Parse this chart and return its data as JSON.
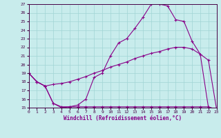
{
  "xlabel": "Windchill (Refroidissement éolien,°C)",
  "background_color": "#c8ecec",
  "line_color": "#880088",
  "xlim": [
    0,
    23
  ],
  "ylim": [
    15,
    27
  ],
  "yticks": [
    15,
    16,
    17,
    18,
    19,
    20,
    21,
    22,
    23,
    24,
    25,
    26,
    27
  ],
  "xticks": [
    0,
    1,
    2,
    3,
    4,
    5,
    6,
    7,
    8,
    9,
    10,
    11,
    12,
    13,
    14,
    15,
    16,
    17,
    18,
    19,
    20,
    21,
    22,
    23
  ],
  "curve1_x": [
    0,
    1,
    2,
    3,
    4,
    5,
    6,
    7,
    8,
    9,
    10,
    11,
    12,
    13,
    14,
    15,
    16,
    17,
    18,
    19,
    20,
    21,
    22,
    23
  ],
  "curve1_y": [
    19.0,
    18.0,
    17.5,
    15.5,
    15.0,
    15.1,
    15.3,
    16.0,
    18.5,
    19.0,
    21.0,
    22.5,
    23.0,
    24.2,
    25.5,
    27.0,
    27.0,
    26.8,
    25.2,
    25.0,
    22.7,
    21.2,
    15.0,
    14.8
  ],
  "curve2_x": [
    0,
    1,
    2,
    3,
    4,
    5,
    6,
    7,
    8,
    9,
    10,
    11,
    12,
    13,
    14,
    15,
    16,
    17,
    18,
    19,
    20,
    21,
    22,
    23
  ],
  "curve2_y": [
    19.0,
    18.0,
    17.5,
    15.5,
    15.1,
    15.1,
    15.1,
    15.1,
    15.1,
    15.1,
    15.1,
    15.1,
    15.1,
    15.1,
    15.1,
    15.1,
    15.1,
    15.1,
    15.1,
    15.1,
    15.1,
    15.1,
    15.1,
    14.8
  ],
  "curve3_x": [
    0,
    1,
    2,
    3,
    4,
    5,
    6,
    7,
    8,
    9,
    10,
    11,
    12,
    13,
    14,
    15,
    16,
    17,
    18,
    19,
    20,
    21,
    22,
    23
  ],
  "curve3_y": [
    19.0,
    18.0,
    17.5,
    17.7,
    17.8,
    18.0,
    18.3,
    18.6,
    19.0,
    19.3,
    19.7,
    20.0,
    20.3,
    20.7,
    21.0,
    21.3,
    21.5,
    21.8,
    22.0,
    22.0,
    21.8,
    21.2,
    20.5,
    14.8
  ]
}
